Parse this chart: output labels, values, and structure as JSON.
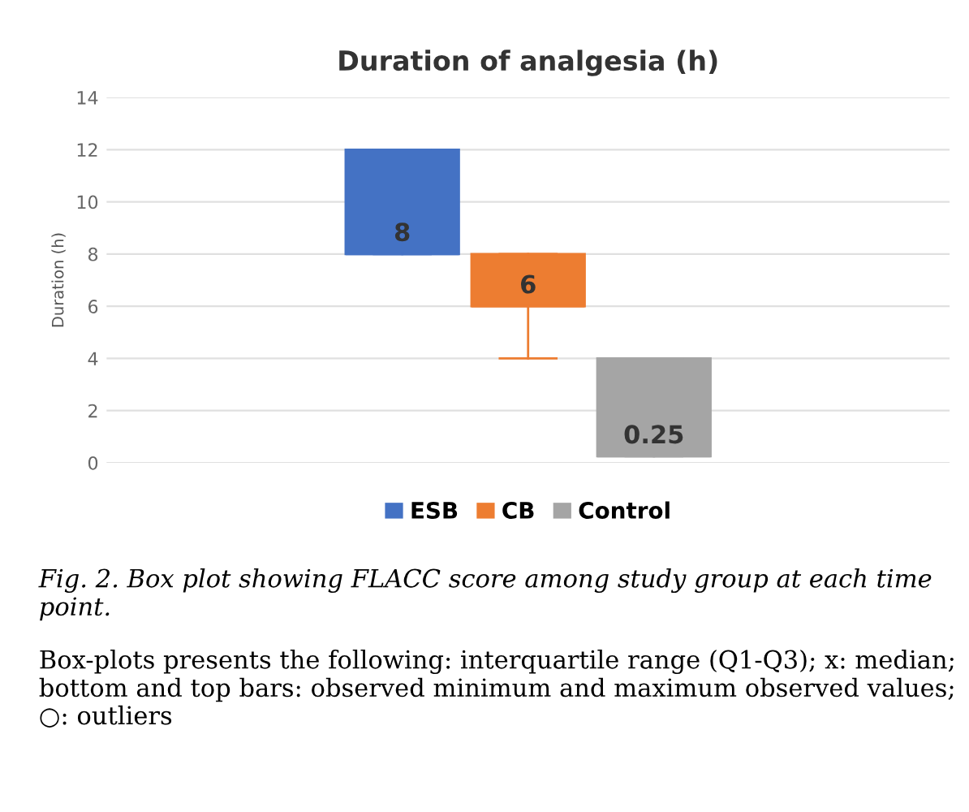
{
  "chart_data": {
    "type": "box",
    "title": "Duration of analgesia (h)",
    "ylabel": "Duration (h)",
    "categories": [
      null
    ],
    "series": [
      {
        "name": "ESB",
        "color": "#4472c4",
        "boxes": [
          {
            "low": 8,
            "q1": 8,
            "median": 8,
            "q3": 12,
            "high": 12
          }
        ],
        "value_labels": [
          "8"
        ]
      },
      {
        "name": "CB",
        "color": "#ed7d31",
        "boxes": [
          {
            "low": 4,
            "q1": 6,
            "median": 6,
            "q3": 8,
            "high": 8
          }
        ],
        "value_labels": [
          "6"
        ]
      },
      {
        "name": "Control",
        "color": "#a5a5a5",
        "boxes": [
          {
            "low": 0.25,
            "q1": 0.25,
            "median": 0.25,
            "q3": 4,
            "high": 4
          }
        ],
        "value_labels": [
          "0.25"
        ]
      }
    ],
    "ylim": [
      0,
      14
    ],
    "yticks": [
      0,
      2,
      4,
      6,
      8,
      10,
      12,
      14
    ],
    "grid": "y",
    "legend": "bottom",
    "tick_labels": "y",
    "annotations": [
      "Fig. 2. Box plot showing FLACC score among study group at each time point.",
      "Box-plots presents the following: interquartile range (Q1-Q3); x: median; bottom and top bars: observed minimum and maximum observed values; ○: outliers"
    ]
  }
}
